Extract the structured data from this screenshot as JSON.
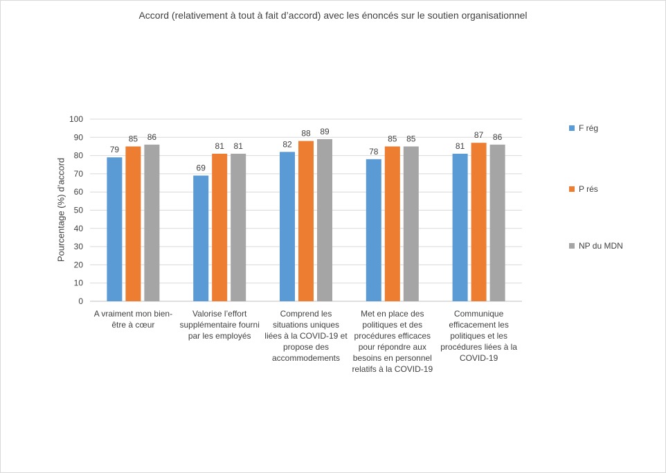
{
  "chart_data": {
    "type": "bar",
    "title": "Accord (relativement à tout à fait d’accord) avec les énoncés sur le soutien organisationnel",
    "xlabel": "",
    "ylabel": "Pourcentage (%) d’accord",
    "ylim": [
      0,
      100
    ],
    "yticks": [
      0,
      10,
      20,
      30,
      40,
      50,
      60,
      70,
      80,
      90,
      100
    ],
    "grid": true,
    "legend_position": "right",
    "categories": [
      "A vraiment mon bien-être à cœur",
      "Valorise l’effort supplémentaire fourni par les employés",
      "Comprend les situations uniques liées à la COVID-19 et propose des accommodements",
      "Met en place des politiques et des procédures efficaces pour répondre aux besoins en personnel relatifs à la COVID-19",
      "Communique efficacement les politiques et les procédures liées à la COVID-19"
    ],
    "category_lines": [
      [
        "A vraiment mon bien-",
        "être à cœur"
      ],
      [
        "Valorise l’effort",
        "supplémentaire fourni",
        "par les employés"
      ],
      [
        "Comprend les",
        "situations uniques",
        "liées à la COVID-19 et",
        "propose des",
        "accommodements"
      ],
      [
        "Met en place des",
        "politiques et des",
        "procédures efficaces",
        "pour répondre aux",
        "besoins en personnel",
        "relatifs à la COVID-19"
      ],
      [
        "Communique",
        "efficacement les",
        "politiques et les",
        "procédures liées à la",
        "COVID-19"
      ]
    ],
    "series": [
      {
        "name": "F rég",
        "color": "#5b9bd5",
        "values": [
          79,
          69,
          82,
          78,
          81
        ]
      },
      {
        "name": "P rés",
        "color": "#ed7d31",
        "values": [
          85,
          81,
          88,
          85,
          87
        ]
      },
      {
        "name": "NP du MDN",
        "color": "#a5a5a5",
        "values": [
          86,
          81,
          89,
          85,
          86
        ]
      }
    ]
  }
}
